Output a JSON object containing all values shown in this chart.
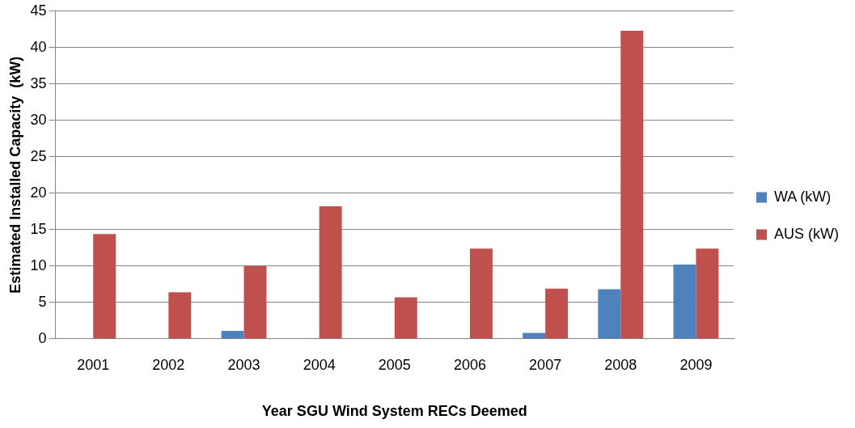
{
  "chart_data": {
    "type": "bar",
    "xlabel": "Year SGU Wind System RECs Deemed",
    "ylabel": "Estimated Installed Capacity  (kW)",
    "categories": [
      "2001",
      "2002",
      "2003",
      "2004",
      "2005",
      "2006",
      "2007",
      "2008",
      "2009"
    ],
    "series": [
      {
        "name": "WA (kW)",
        "color": "#4f81bd",
        "values": [
          0,
          0,
          1.1,
          0,
          0,
          0,
          0.8,
          6.8,
          10.2
        ]
      },
      {
        "name": "AUS (kW)",
        "color": "#c0504d",
        "values": [
          14.4,
          6.4,
          10.0,
          18.2,
          5.7,
          12.4,
          6.9,
          42.3,
          12.4
        ]
      }
    ],
    "ylim": [
      0,
      45
    ],
    "yticks": [
      0,
      5,
      10,
      15,
      20,
      25,
      30,
      35,
      40,
      45
    ],
    "grid": "y",
    "legend": "right"
  }
}
